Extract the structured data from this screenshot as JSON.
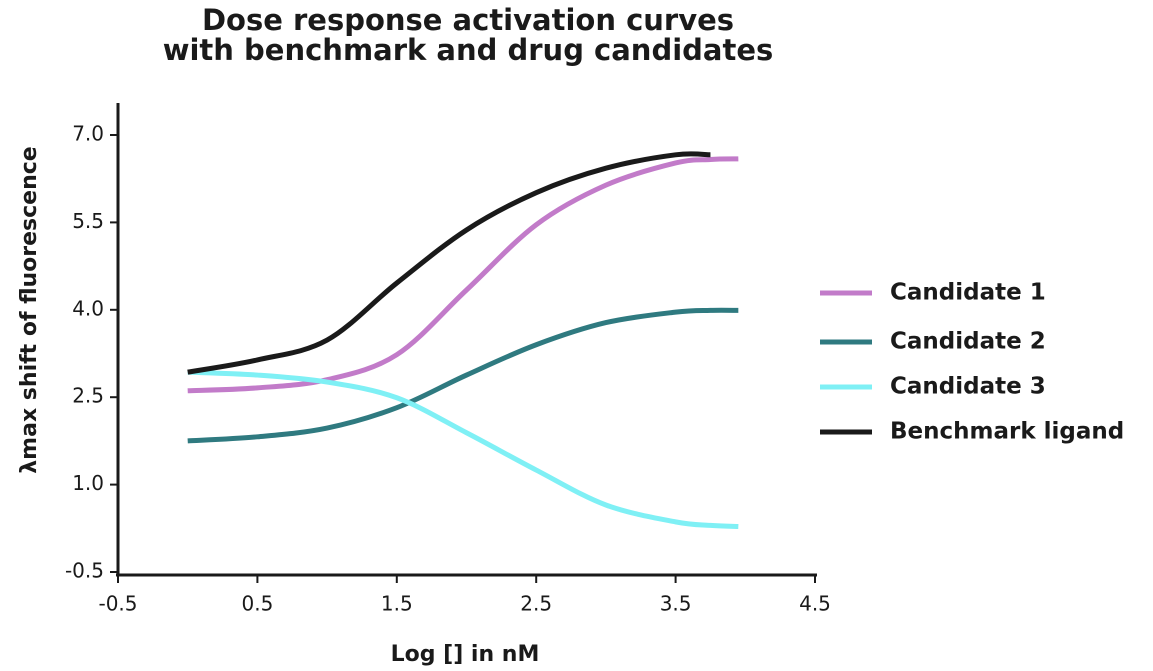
{
  "chart_data": {
    "type": "line",
    "title": [
      "Dose response activation curves",
      "with benchmark and drug candidates"
    ],
    "x_label": "Log [] in nM",
    "y_label": "λmax shift of fluorescence",
    "x": [
      0,
      0.5,
      1,
      1.5,
      2,
      2.5,
      3,
      3.5,
      3.75,
      3.95
    ],
    "series": [
      {
        "name": "Candidate 1",
        "color": "#c27bc9",
        "values": [
          2.61,
          2.66,
          2.8,
          3.23,
          4.34,
          5.46,
          6.14,
          6.52,
          6.58,
          6.59
        ]
      },
      {
        "name": "Candidate 2",
        "color": "#2f7a80",
        "values": [
          1.75,
          1.82,
          1.97,
          2.32,
          2.88,
          3.4,
          3.78,
          3.96,
          3.99,
          3.99
        ]
      },
      {
        "name": "Candidate 3",
        "color": "#7ff0f5",
        "values": [
          2.93,
          2.88,
          2.76,
          2.49,
          1.89,
          1.25,
          0.65,
          0.36,
          0.3,
          0.28
        ]
      },
      {
        "name": "Benchmark ligand",
        "color": "#1a1a1a",
        "values": [
          2.93,
          3.14,
          3.48,
          4.46,
          5.37,
          6.01,
          6.43,
          6.66,
          6.66,
          null
        ]
      }
    ],
    "xlim": [
      -0.5,
      4.5
    ],
    "xticks": [
      -0.5,
      0.5,
      1.5,
      2.5,
      3.5,
      4.5
    ],
    "ylim": [
      -0.5,
      7.5
    ],
    "yticks": [
      -0.5,
      {
        "value": 1,
        "label": "1.0"
      },
      2.5,
      {
        "value": 4,
        "label": "4.0"
      },
      5.5,
      {
        "value": 7,
        "label": "7.0"
      }
    ],
    "grid": false,
    "legend": "right"
  }
}
